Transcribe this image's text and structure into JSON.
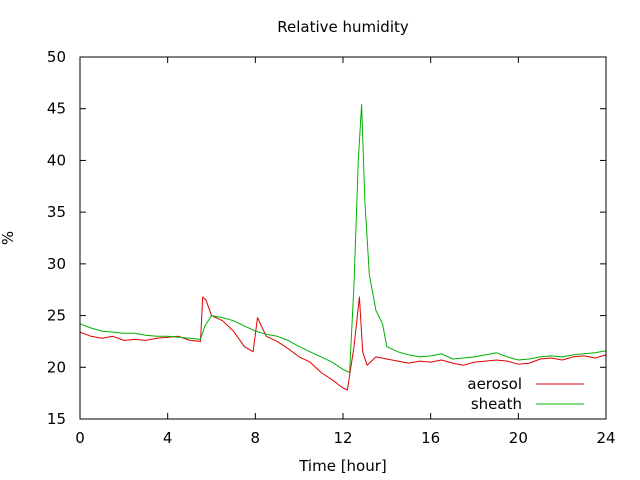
{
  "chart_data": {
    "type": "line",
    "title": "Relative humidity",
    "xlabel": "Time [hour]",
    "ylabel": "%",
    "xlim": [
      0,
      24
    ],
    "ylim": [
      15,
      50
    ],
    "xticks": [
      0,
      4,
      8,
      12,
      16,
      20,
      24
    ],
    "yticks": [
      15,
      20,
      25,
      30,
      35,
      40,
      45,
      50
    ],
    "grid": false,
    "legend_position": "bottom-right",
    "series": [
      {
        "name": "aerosol",
        "color": "#e00000",
        "x": [
          0,
          0.5,
          1,
          1.5,
          2,
          2.5,
          3,
          3.5,
          4,
          4.5,
          5,
          5.5,
          5.6,
          5.75,
          6,
          6.5,
          7,
          7.5,
          7.9,
          8.1,
          8.5,
          9,
          9.5,
          10,
          10.5,
          11,
          11.5,
          12,
          12.2,
          12.5,
          12.75,
          12.9,
          13.1,
          13.5,
          14,
          14.5,
          15,
          15.5,
          16,
          16.5,
          17,
          17.5,
          18,
          18.5,
          19,
          19.5,
          20,
          20.5,
          21,
          21.5,
          22,
          22.5,
          23,
          23.5,
          24
        ],
        "y": [
          23.4,
          23.0,
          22.8,
          23.0,
          22.6,
          22.7,
          22.6,
          22.8,
          22.9,
          23.0,
          22.6,
          22.5,
          26.8,
          26.5,
          25.0,
          24.5,
          23.5,
          22.0,
          21.5,
          24.8,
          23.0,
          22.5,
          21.8,
          21.0,
          20.5,
          19.5,
          18.8,
          18.0,
          17.8,
          22.0,
          26.8,
          21.5,
          20.2,
          21.0,
          20.8,
          20.6,
          20.4,
          20.6,
          20.5,
          20.7,
          20.4,
          20.2,
          20.5,
          20.6,
          20.7,
          20.6,
          20.3,
          20.4,
          20.8,
          20.9,
          20.7,
          21.0,
          21.1,
          20.9,
          21.2
        ]
      },
      {
        "name": "sheath",
        "color": "#00b000",
        "x": [
          0,
          0.5,
          1,
          1.5,
          2,
          2.5,
          3,
          3.5,
          4,
          4.5,
          5,
          5.5,
          5.7,
          6,
          6.5,
          7,
          7.5,
          8,
          8.5,
          9,
          9.5,
          10,
          10.5,
          11,
          11.5,
          12,
          12.3,
          12.5,
          12.7,
          12.85,
          13,
          13.2,
          13.5,
          13.8,
          14,
          14.5,
          15,
          15.5,
          16,
          16.5,
          17,
          17.5,
          18,
          18.5,
          19,
          19.5,
          20,
          20.5,
          21,
          21.5,
          22,
          22.5,
          23,
          23.5,
          24
        ],
        "y": [
          24.2,
          23.8,
          23.5,
          23.4,
          23.3,
          23.3,
          23.1,
          23.0,
          23.0,
          22.9,
          22.8,
          22.7,
          24.0,
          25.0,
          24.8,
          24.5,
          24.0,
          23.5,
          23.2,
          23.0,
          22.6,
          22.0,
          21.5,
          21.0,
          20.5,
          19.8,
          19.5,
          28.0,
          40.0,
          45.4,
          36.0,
          29.0,
          25.5,
          24.2,
          22.0,
          21.5,
          21.2,
          21.0,
          21.1,
          21.3,
          20.8,
          20.9,
          21.0,
          21.2,
          21.4,
          21.0,
          20.7,
          20.8,
          21.0,
          21.1,
          21.0,
          21.2,
          21.3,
          21.4,
          21.6
        ]
      }
    ]
  }
}
